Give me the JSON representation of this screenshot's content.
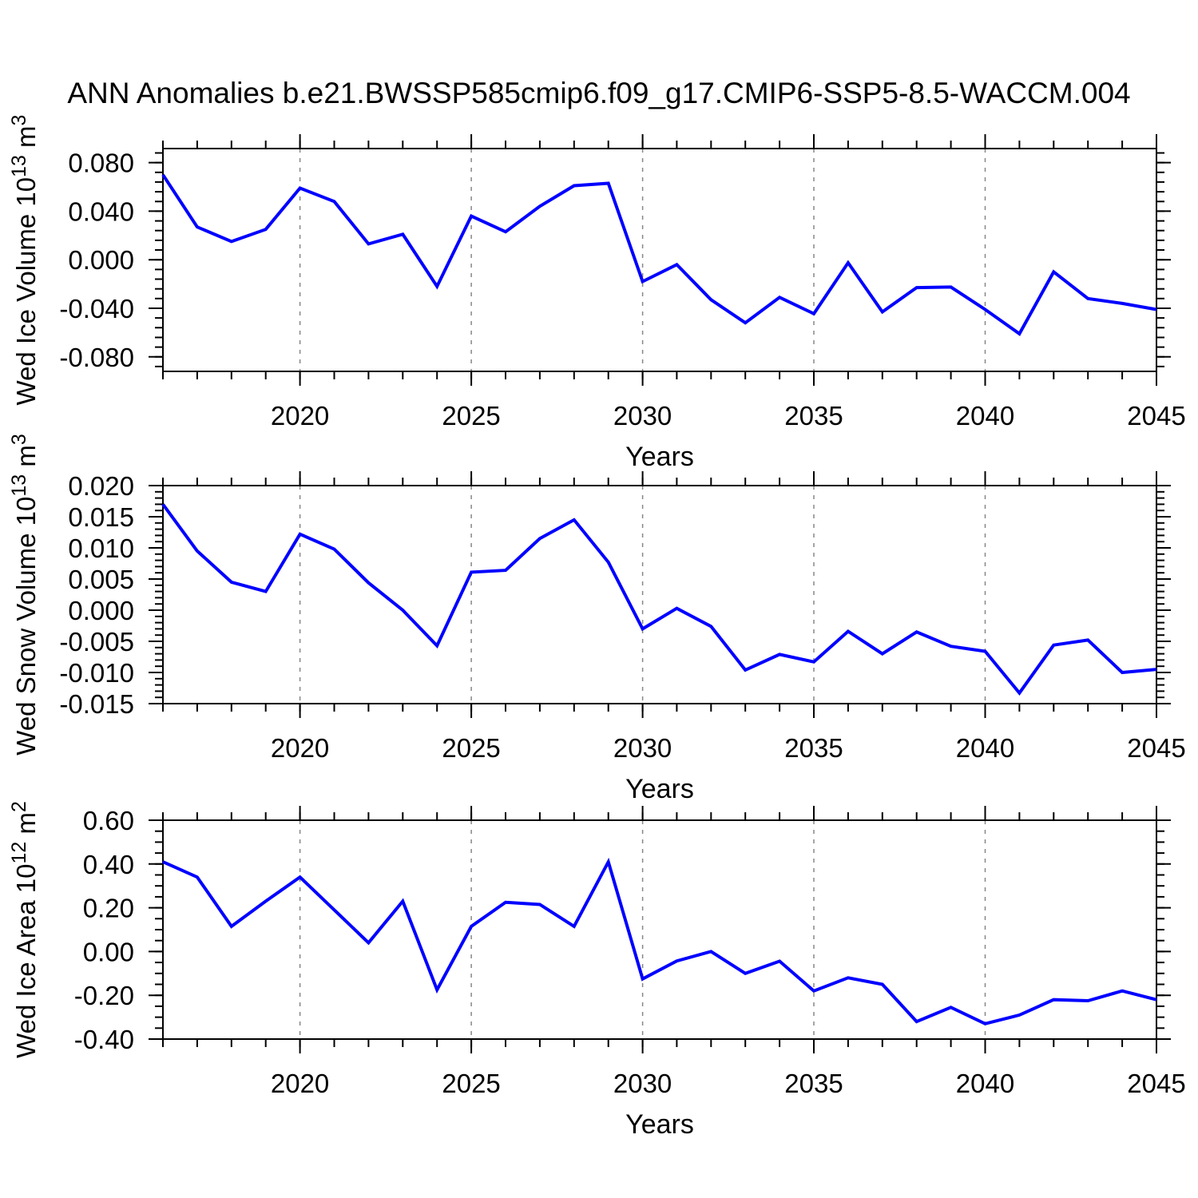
{
  "title": "ANN Anomalies b.e21.BWSSP585cmip6.f09_g17.CMIP6-SSP5-8.5-WACCM.004",
  "colors": {
    "line": "#0000ff",
    "grid": "#878787",
    "axis": "#000000"
  },
  "chart_data": [
    {
      "type": "line",
      "name": "wed-ice-volume",
      "ylabel_segments": [
        {
          "t": "Wed Ice Volume 10",
          "sup": false
        },
        {
          "t": "13",
          "sup": true
        },
        {
          "t": " m",
          "sup": false
        },
        {
          "t": "3",
          "sup": true
        }
      ],
      "xlabel": "Years",
      "x": [
        2016,
        2017,
        2018,
        2019,
        2020,
        2021,
        2022,
        2023,
        2024,
        2025,
        2026,
        2027,
        2028,
        2029,
        2030,
        2031,
        2032,
        2033,
        2034,
        2035,
        2036,
        2037,
        2038,
        2039,
        2040,
        2041,
        2042,
        2043,
        2044,
        2045
      ],
      "values": [
        0.07,
        0.027,
        0.015,
        0.025,
        0.059,
        0.048,
        0.013,
        0.021,
        -0.022,
        0.036,
        0.023,
        0.044,
        0.061,
        0.063,
        -0.018,
        -0.004,
        -0.033,
        -0.052,
        -0.031,
        -0.0445,
        -0.0025,
        -0.043,
        -0.023,
        -0.0225,
        -0.041,
        -0.061,
        -0.01,
        -0.032,
        -0.036,
        -0.041
      ],
      "xlim": [
        2016,
        2045
      ],
      "ylim": [
        -0.092,
        0.0916
      ],
      "xticks": [
        2020,
        2025,
        2030,
        2035,
        2040,
        2045
      ],
      "xtick_labels": [
        "2020",
        "2025",
        "2030",
        "2035",
        "2040",
        "2045"
      ],
      "xminor_step": 1,
      "yticks": [
        0.08,
        0.04,
        0.0,
        -0.04,
        -0.08
      ],
      "ytick_labels": [
        "0.080",
        "0.040",
        "0.000",
        "-0.040",
        "-0.080"
      ],
      "yminor_step": 0.008,
      "grid": "vertical-dashed-at-x-majors",
      "legend": "none"
    },
    {
      "type": "line",
      "name": "wed-snow-volume",
      "ylabel_segments": [
        {
          "t": "Wed Snow Volume 10",
          "sup": false
        },
        {
          "t": "13",
          "sup": true
        },
        {
          "t": " m",
          "sup": false
        },
        {
          "t": "3",
          "sup": true
        }
      ],
      "xlabel": "Years",
      "x": [
        2016,
        2017,
        2018,
        2019,
        2020,
        2021,
        2022,
        2023,
        2024,
        2025,
        2026,
        2027,
        2028,
        2029,
        2030,
        2031,
        2032,
        2033,
        2034,
        2035,
        2036,
        2037,
        2038,
        2039,
        2040,
        2041,
        2042,
        2043,
        2044,
        2045
      ],
      "values": [
        0.017,
        0.0095,
        0.0045,
        0.003,
        0.0122,
        0.0098,
        0.0044,
        0.0,
        -0.0057,
        0.0061,
        0.0064,
        0.0115,
        0.0145,
        0.0077,
        -0.003,
        0.0003,
        -0.0026,
        -0.0096,
        -0.0071,
        -0.0083,
        -0.0034,
        -0.007,
        -0.0035,
        -0.0058,
        -0.0066,
        -0.0133,
        -0.0056,
        -0.0048,
        -0.01,
        -0.0095
      ],
      "xlim": [
        2016,
        2045
      ],
      "ylim": [
        -0.015,
        0.02
      ],
      "xticks": [
        2020,
        2025,
        2030,
        2035,
        2040,
        2045
      ],
      "xtick_labels": [
        "2020",
        "2025",
        "2030",
        "2035",
        "2040",
        "2045"
      ],
      "xminor_step": 1,
      "yticks": [
        0.02,
        0.015,
        0.01,
        0.005,
        0.0,
        -0.005,
        -0.01,
        -0.015
      ],
      "ytick_labels": [
        "0.020",
        "0.015",
        "0.010",
        "0.005",
        "0.000",
        "-0.005",
        "-0.010",
        "-0.015"
      ],
      "yminor_step": 0.001,
      "grid": "vertical-dashed-at-x-majors",
      "legend": "none"
    },
    {
      "type": "line",
      "name": "wed-ice-area",
      "ylabel_segments": [
        {
          "t": "Wed Ice Area 10",
          "sup": false
        },
        {
          "t": "12",
          "sup": true
        },
        {
          "t": " m",
          "sup": false
        },
        {
          "t": "2",
          "sup": true
        }
      ],
      "xlabel": "Years",
      "x": [
        2016,
        2017,
        2018,
        2019,
        2020,
        2021,
        2022,
        2023,
        2024,
        2025,
        2026,
        2027,
        2028,
        2029,
        2030,
        2031,
        2032,
        2033,
        2034,
        2035,
        2036,
        2037,
        2038,
        2039,
        2040,
        2041,
        2042,
        2043,
        2044,
        2045
      ],
      "values": [
        0.41,
        0.34,
        0.115,
        0.23,
        0.34,
        0.19,
        0.04,
        0.23,
        -0.175,
        0.115,
        0.225,
        0.215,
        0.115,
        0.41,
        -0.125,
        -0.043,
        0.0,
        -0.1,
        -0.044,
        -0.18,
        -0.12,
        -0.15,
        -0.32,
        -0.255,
        -0.33,
        -0.29,
        -0.22,
        -0.225,
        -0.18,
        -0.22
      ],
      "xlim": [
        2016,
        2045
      ],
      "ylim": [
        -0.4,
        0.6
      ],
      "xticks": [
        2020,
        2025,
        2030,
        2035,
        2040,
        2045
      ],
      "xtick_labels": [
        "2020",
        "2025",
        "2030",
        "2035",
        "2040",
        "2045"
      ],
      "xminor_step": 1,
      "yticks": [
        0.6,
        0.4,
        0.2,
        0.0,
        -0.2,
        -0.4
      ],
      "ytick_labels": [
        "0.60",
        "0.40",
        "0.20",
        "0.00",
        "-0.20",
        "-0.40"
      ],
      "yminor_step": 0.05,
      "grid": "vertical-dashed-at-x-majors",
      "legend": "none"
    }
  ]
}
